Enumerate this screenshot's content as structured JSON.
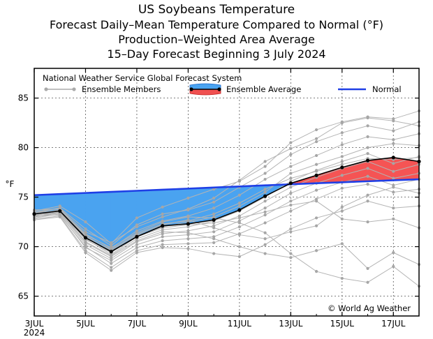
{
  "chart_data": {
    "type": "line",
    "title": "US Soybeans Temperature",
    "subtitle_lines": [
      "Forecast Daily–Mean Temperature Compared to Normal (°F)",
      "Production–Weighted Area Average",
      "15–Day Forecast Beginning 3 July 2024"
    ],
    "ylabel": "°F",
    "xlabel": "",
    "ylim": [
      63,
      88
    ],
    "xlim": [
      0,
      15
    ],
    "grid": true,
    "y_ticks": [
      65,
      70,
      75,
      80,
      85
    ],
    "x_ticks": [
      {
        "x": 0,
        "label": "3JUL",
        "sublabel": "2024"
      },
      {
        "x": 2,
        "label": "5JUL"
      },
      {
        "x": 4,
        "label": "7JUL"
      },
      {
        "x": 6,
        "label": "9JUL"
      },
      {
        "x": 8,
        "label": "11JUL"
      },
      {
        "x": 10,
        "label": "13JUL"
      },
      {
        "x": 12,
        "label": "15JUL"
      },
      {
        "x": 14,
        "label": "17JUL"
      }
    ],
    "legend": {
      "heading": "National Weather Service Global Forecast System",
      "members_label": "Ensemble Members",
      "average_label": "Ensemble Average",
      "normal_label": "Normal",
      "placement": "top"
    },
    "credit": "© World Ag Weather",
    "x": [
      0,
      1,
      2,
      3,
      4,
      5,
      6,
      7,
      8,
      9,
      10,
      11,
      12,
      13,
      14,
      15
    ],
    "series": [
      {
        "name": "Ensemble Average",
        "values": [
          73.3,
          73.6,
          70.9,
          69.5,
          71.0,
          72.1,
          72.3,
          72.7,
          73.7,
          75.1,
          76.4,
          77.2,
          78.0,
          78.7,
          79.0,
          78.6
        ]
      },
      {
        "name": "Normal",
        "values": [
          75.2,
          75.31,
          75.42,
          75.53,
          75.64,
          75.75,
          75.86,
          75.97,
          76.08,
          76.19,
          76.3,
          76.4,
          76.5,
          76.6,
          76.7,
          76.8
        ]
      }
    ],
    "ensemble_members": [
      [
        73.6,
        74.1,
        72.5,
        70.3,
        72.9,
        74.0,
        74.9,
        75.8,
        76.6,
        78.1,
        80.5,
        81.8,
        82.6,
        83.1,
        82.9,
        83.7
      ],
      [
        73.4,
        73.9,
        71.8,
        70.1,
        72.2,
        73.3,
        73.7,
        74.5,
        76.0,
        77.4,
        79.3,
        80.6,
        81.5,
        82.2,
        81.7,
        82.6
      ],
      [
        73.1,
        73.7,
        71.3,
        69.8,
        71.6,
        72.6,
        73.1,
        73.9,
        75.2,
        76.8,
        78.1,
        79.2,
        80.3,
        81.1,
        80.8,
        81.4
      ],
      [
        73.3,
        73.6,
        70.7,
        69.4,
        71.1,
        72.0,
        72.5,
        73.0,
        74.1,
        75.5,
        77.4,
        78.3,
        79.1,
        80.0,
        80.4,
        80.2
      ],
      [
        73.0,
        73.5,
        70.5,
        69.1,
        70.8,
        71.7,
        72.0,
        72.6,
        73.6,
        75.0,
        76.6,
        77.7,
        78.6,
        79.4,
        78.4,
        79.1
      ],
      [
        73.2,
        73.4,
        70.2,
        68.8,
        70.5,
        71.3,
        71.6,
        72.1,
        73.1,
        74.6,
        76.0,
        77.0,
        77.9,
        78.6,
        77.6,
        78.3
      ],
      [
        72.9,
        73.3,
        69.9,
        68.6,
        70.2,
        71.0,
        71.2,
        71.5,
        72.6,
        73.9,
        75.4,
        76.4,
        77.2,
        77.9,
        76.9,
        77.4
      ],
      [
        73.1,
        73.2,
        70.0,
        68.3,
        69.9,
        70.6,
        70.8,
        71.0,
        72.0,
        73.2,
        74.6,
        75.7,
        76.5,
        77.1,
        76.2,
        76.8
      ],
      [
        72.8,
        73.1,
        69.6,
        67.9,
        69.6,
        70.2,
        70.3,
        70.4,
        71.3,
        72.4,
        73.6,
        74.8,
        75.9,
        76.3,
        75.5,
        75.8
      ],
      [
        73.5,
        73.9,
        71.0,
        69.7,
        71.3,
        72.3,
        72.6,
        73.3,
        74.4,
        75.8,
        76.9,
        77.6,
        78.3,
        78.9,
        78.8,
        79.0
      ],
      [
        73.7,
        73.8,
        71.5,
        70.4,
        72.0,
        73.0,
        73.8,
        74.9,
        76.7,
        78.6,
        79.9,
        80.9,
        82.5,
        83.0,
        82.7,
        82.2
      ],
      [
        72.7,
        73.0,
        69.4,
        67.6,
        69.4,
        69.9,
        69.8,
        69.3,
        69.0,
        70.2,
        71.8,
        72.9,
        73.6,
        74.6,
        73.9,
        74.1
      ],
      [
        73.4,
        73.7,
        71.2,
        69.9,
        71.4,
        72.5,
        73.0,
        72.9,
        72.4,
        71.4,
        69.3,
        67.5,
        66.8,
        66.4,
        68.0,
        66.0
      ],
      [
        73.2,
        73.5,
        70.4,
        69.0,
        70.6,
        71.5,
        71.4,
        70.8,
        70.0,
        69.3,
        68.9,
        69.6,
        70.3,
        67.8,
        69.4,
        68.2
      ],
      [
        73.0,
        73.4,
        70.8,
        69.2,
        71.0,
        71.9,
        72.2,
        72.4,
        72.9,
        73.5,
        74.2,
        74.6,
        72.8,
        72.5,
        72.8,
        71.9
      ],
      [
        73.3,
        73.6,
        71.1,
        69.6,
        71.2,
        72.2,
        72.7,
        71.9,
        71.2,
        70.8,
        71.5,
        72.1,
        74.0,
        75.2,
        76.0,
        75.4
      ]
    ]
  }
}
